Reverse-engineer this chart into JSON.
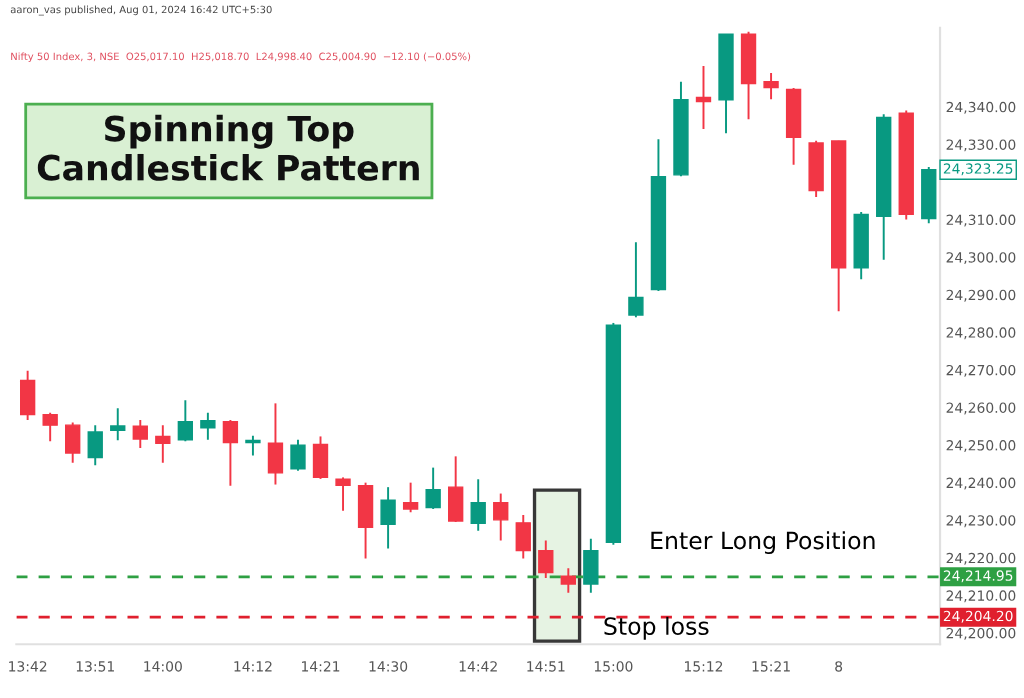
{
  "chart_data": {
    "type": "candlestick",
    "title": "Spinning Top Candlestick Pattern",
    "subtitle": "Nifty 50 Index, 3, NSE  O25,017.10  H25,018.70  L24,998.40  C25,004.90  −12.10 (−0.05%)",
    "categories": [
      "13:42",
      null,
      null,
      "13:51",
      null,
      null,
      "14:00",
      null,
      null,
      null,
      "14:12",
      null,
      null,
      "14:21",
      null,
      null,
      "14:30",
      null,
      null,
      null,
      "14:42",
      null,
      null,
      "14:51",
      null,
      null,
      "15:00",
      null,
      null,
      null,
      "15:12",
      null,
      null,
      "15:21",
      null,
      null,
      "8",
      null,
      null,
      null,
      null
    ],
    "ohlc": [
      [
        24267.2,
        24269.8,
        24256.7,
        24258.1
      ],
      [
        24258.1,
        24258.6,
        24251.0,
        24255.3
      ],
      [
        24255.3,
        24256.0,
        24245.3,
        24247.9
      ],
      [
        24246.7,
        24255.3,
        24244.6,
        24253.5
      ],
      [
        24253.9,
        24259.8,
        24251.3,
        24255.1
      ],
      [
        24255.0,
        24256.7,
        24249.2,
        24251.6
      ],
      [
        24252.3,
        24255.3,
        24245.3,
        24250.5
      ],
      [
        24251.4,
        24261.9,
        24251.0,
        24256.2
      ],
      [
        24254.6,
        24258.6,
        24251.4,
        24256.5
      ],
      [
        24256.2,
        24256.7,
        24239.2,
        24250.7
      ],
      [
        24250.7,
        24252.5,
        24247.2,
        24251.2
      ],
      [
        24250.5,
        24261.1,
        24239.5,
        24242.6
      ],
      [
        24243.7,
        24251.4,
        24243.2,
        24250.0
      ],
      [
        24250.2,
        24252.3,
        24241.0,
        24241.4
      ],
      [
        24240.9,
        24241.4,
        24232.5,
        24239.3
      ],
      [
        24239.2,
        24240.0,
        24219.8,
        24228.1
      ],
      [
        24228.9,
        24238.8,
        24222.5,
        24235.3
      ],
      [
        24234.7,
        24240.0,
        24232.1,
        24233.0
      ],
      [
        24233.4,
        24244.0,
        24233.0,
        24238.1
      ],
      [
        24238.8,
        24247.0,
        24229.5,
        24229.8
      ],
      [
        24229.2,
        24240.9,
        24227.2,
        24234.7
      ],
      [
        24234.7,
        24237.1,
        24224.6,
        24230.1
      ],
      [
        24229.3,
        24231.4,
        24219.8,
        24221.9
      ],
      [
        24221.9,
        24224.6,
        24214.6,
        24216.1
      ],
      [
        24215.1,
        24217.2,
        24210.7,
        24213.0
      ],
      [
        24213.0,
        24225.1,
        24210.7,
        24221.9
      ],
      [
        24224.1,
        24282.5,
        24223.5,
        24281.9
      ],
      [
        24284.6,
        24304.0,
        24284.0,
        24289.3
      ],
      [
        24291.4,
        24331.4,
        24291.0,
        24321.4
      ],
      [
        24321.9,
        24346.7,
        24321.5,
        24341.9
      ],
      [
        24342.5,
        24350.9,
        24334.1,
        24341.4
      ],
      [
        24341.9,
        24359.3,
        24333.0,
        24359.3
      ],
      [
        24359.3,
        24360.0,
        24336.7,
        24346.2
      ],
      [
        24346.7,
        24349.0,
        24342.0,
        24345.1
      ],
      [
        24344.6,
        24345.0,
        24324.6,
        24331.9
      ],
      [
        24330.4,
        24331.0,
        24316.0,
        24317.7
      ],
      [
        24330.9,
        24331.0,
        24285.6,
        24297.2
      ],
      [
        24297.2,
        24312.0,
        24294.1,
        24311.4
      ],
      [
        24310.9,
        24338.0,
        24299.3,
        24337.2
      ],
      [
        24338.3,
        24339.0,
        24310.0,
        24311.4
      ],
      [
        24310.3,
        24324.0,
        24309.0,
        24323.25
      ]
    ],
    "colors": [
      "#f23645",
      "#f23645",
      "#f23645",
      "#089981",
      "#089981",
      "#f23645",
      "#f23645",
      "#089981",
      "#089981",
      "#f23645",
      "#089981",
      "#f23645",
      "#089981",
      "#f23645",
      "#f23645",
      "#f23645",
      "#089981",
      "#f23645",
      "#089981",
      "#f23645",
      "#089981",
      "#f23645",
      "#f23645",
      "#f23645",
      "#f23645",
      "#089981",
      "#089981",
      "#089981",
      "#089981",
      "#089981",
      "#f23645",
      "#089981",
      "#f23645",
      "#f23645",
      "#f23645",
      "#f23645",
      "#f23645",
      "#089981",
      "#089981",
      "#f23645",
      "#089981"
    ],
    "ylim": [
      24197,
      24361
    ],
    "yticks": [
      {
        "value": 24200,
        "label": "24,200.00"
      },
      {
        "value": 24210,
        "label": "24,210.00"
      },
      {
        "value": 24220,
        "label": "24,220.00"
      },
      {
        "value": 24230,
        "label": "24,230.00"
      },
      {
        "value": 24240,
        "label": "24,240.00"
      },
      {
        "value": 24250,
        "label": "24,250.00"
      },
      {
        "value": 24260,
        "label": "24,260.00"
      },
      {
        "value": 24270,
        "label": "24,270.00"
      },
      {
        "value": 24280,
        "label": "24,280.00"
      },
      {
        "value": 24290,
        "label": "24,290.00"
      },
      {
        "value": 24300,
        "label": "24,300.00"
      },
      {
        "value": 24310,
        "label": "24,310.00"
      },
      {
        "value": 24330,
        "label": "24,330.00"
      },
      {
        "value": 24340,
        "label": "24,340.00"
      }
    ],
    "ref_lines": [
      {
        "axis": "y",
        "value": 24214.95,
        "label": "24,214.95",
        "color": "#2ea043",
        "line_style": "dashed"
      },
      {
        "axis": "y",
        "value": 24204.2,
        "label": "24,204.20",
        "color": "#e0202e",
        "line_style": "dashed"
      }
    ],
    "annotations": [
      "aaron_vas published, Aug 01, 2024 16:42 UTC+5:30",
      "24,323.25",
      "Enter Long Position",
      "Stop loss"
    ],
    "grid": false
  }
}
